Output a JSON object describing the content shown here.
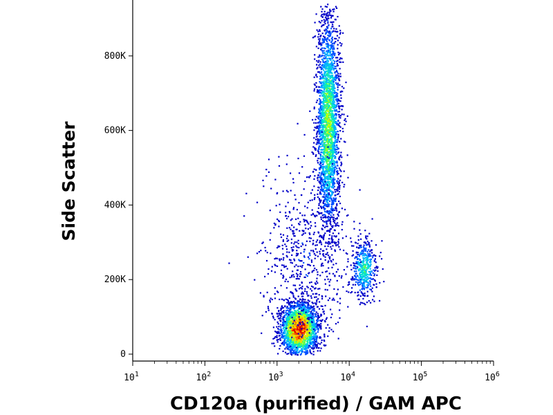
{
  "chart_data": {
    "type": "scatter",
    "style": "density-dot-plot",
    "xlabel": "CD120a (purified) / GAM APC",
    "ylabel": "Side Scatter",
    "x_scale": "log",
    "xlim": [
      10,
      1000000
    ],
    "ylim": [
      0,
      950000
    ],
    "x_ticks": [
      {
        "value": 10,
        "base": "10",
        "exp": "1"
      },
      {
        "value": 100,
        "base": "10",
        "exp": "2"
      },
      {
        "value": 1000,
        "base": "10",
        "exp": "3"
      },
      {
        "value": 10000,
        "base": "10",
        "exp": "4"
      },
      {
        "value": 100000,
        "base": "10",
        "exp": "5"
      },
      {
        "value": 1000000,
        "base": "10",
        "exp": "6"
      }
    ],
    "y_ticks": [
      {
        "value": 0,
        "label": "0"
      },
      {
        "value": 200000,
        "label": "200K"
      },
      {
        "value": 400000,
        "label": "400K"
      },
      {
        "value": 600000,
        "label": "600K"
      },
      {
        "value": 800000,
        "label": "800K"
      }
    ],
    "density_colormap": [
      "#0000c8",
      "#0050ff",
      "#00b4ff",
      "#00e6c8",
      "#5aff50",
      "#c8ff00",
      "#ffd700",
      "#ff7800",
      "#dc0000"
    ],
    "populations": [
      {
        "x_log_center": 3.3,
        "x_log_sd": 0.13,
        "y_center": 70000,
        "y_sd": 35000,
        "n": 2200,
        "peak": 1.0
      },
      {
        "x_log_center": 3.7,
        "x_log_sd": 0.08,
        "y_center": 620000,
        "y_sd": 150000,
        "n": 2600,
        "peak": 0.55
      },
      {
        "x_log_center": 4.2,
        "x_log_sd": 0.09,
        "y_center": 230000,
        "y_sd": 40000,
        "n": 450,
        "peak": 0.4
      },
      {
        "x_log_center": 3.4,
        "x_log_sd": 0.3,
        "y_center": 250000,
        "y_sd": 130000,
        "n": 650,
        "peak": 0.1
      }
    ],
    "grid": false,
    "legend": "none"
  }
}
